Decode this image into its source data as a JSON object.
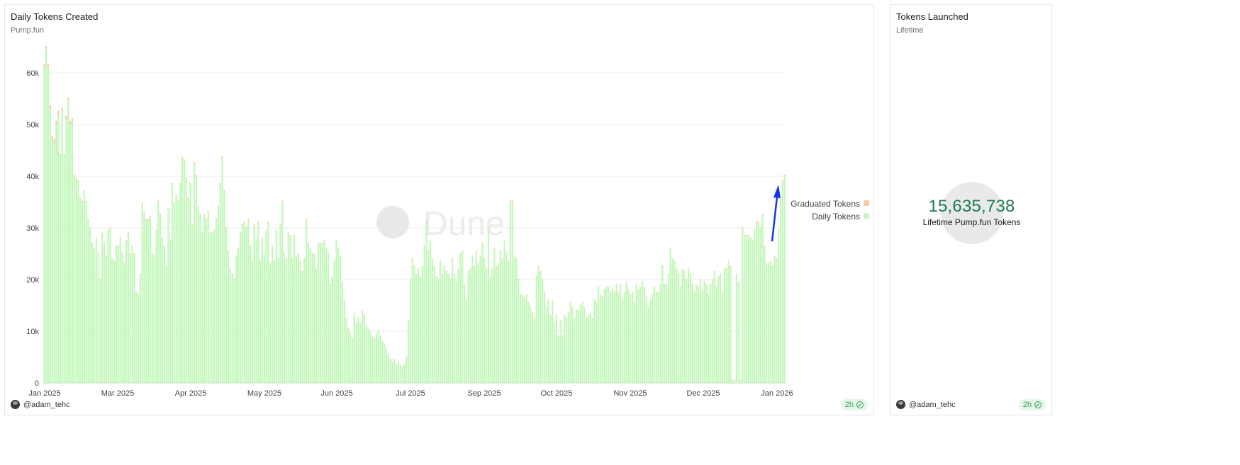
{
  "main_panel": {
    "title": "Daily Tokens Created",
    "subtitle": "Pump.fun",
    "author": "@adam_tehc",
    "refresh": "2h",
    "watermark": "Dune"
  },
  "side_panel": {
    "title": "Tokens Launched",
    "subtitle": "Lifetime",
    "value": "15,635,738",
    "value_label": "Lifetime Pump.fun Tokens",
    "author": "@adam_tehc",
    "refresh": "2h"
  },
  "colors": {
    "daily": "#c3f8bb",
    "graduated": "#f7c9a6",
    "value": "#1c7a52"
  },
  "chart_data": {
    "type": "bar",
    "stacked": true,
    "legend": "right",
    "grid": true,
    "ylim": [
      0,
      65000
    ],
    "yticks": [
      0,
      10000,
      20000,
      30000,
      40000,
      50000,
      60000
    ],
    "ytick_labels": [
      "0",
      "10k",
      "20k",
      "30k",
      "40k",
      "50k",
      "60k"
    ],
    "x_tick_labels": [
      "Jan 2025",
      "Mar 2025",
      "Apr 2025",
      "May 2025",
      "Jun 2025",
      "Jul 2025",
      "Sep 2025",
      "Oct 2025",
      "Nov 2025",
      "Dec 2025",
      "Jan 2026"
    ],
    "series_names": [
      "Graduated Tokens",
      "Daily Tokens"
    ],
    "anchors": [
      [
        0,
        61000
      ],
      [
        1,
        64500
      ],
      [
        2,
        61000
      ],
      [
        3,
        53000
      ],
      [
        4,
        47000
      ],
      [
        5,
        46500
      ],
      [
        6,
        50000
      ],
      [
        7,
        52000
      ],
      [
        8,
        44000
      ],
      [
        9,
        52500
      ],
      [
        10,
        44000
      ],
      [
        11,
        51000
      ],
      [
        12,
        54500
      ],
      [
        13,
        50000
      ],
      [
        14,
        50500
      ],
      [
        15,
        40000
      ],
      [
        16,
        39500
      ],
      [
        17,
        39000
      ],
      [
        18,
        35500
      ],
      [
        19,
        35000
      ],
      [
        20,
        37000
      ],
      [
        21,
        35000
      ],
      [
        22,
        31500
      ],
      [
        23,
        30000
      ],
      [
        24,
        27000
      ],
      [
        25,
        26000
      ],
      [
        26,
        28000
      ],
      [
        27,
        25000
      ],
      [
        28,
        20000
      ],
      [
        29,
        29000
      ],
      [
        30,
        27000
      ],
      [
        31,
        24500
      ],
      [
        32,
        29500
      ],
      [
        33,
        30000
      ],
      [
        34,
        24000
      ],
      [
        35,
        23500
      ],
      [
        36,
        26500
      ],
      [
        37,
        26500
      ],
      [
        38,
        28000
      ],
      [
        39,
        25000
      ],
      [
        40,
        23000
      ],
      [
        41,
        27500
      ],
      [
        42,
        29000
      ],
      [
        43,
        25000
      ],
      [
        44,
        26500
      ],
      [
        45,
        25000
      ],
      [
        46,
        17500
      ],
      [
        47,
        17000
      ],
      [
        48,
        21000
      ],
      [
        49,
        34500
      ],
      [
        50,
        33000
      ],
      [
        51,
        31500
      ],
      [
        52,
        31500
      ],
      [
        53,
        32000
      ],
      [
        54,
        25000
      ],
      [
        55,
        24500
      ],
      [
        56,
        29500
      ],
      [
        57,
        35000
      ],
      [
        58,
        32500
      ],
      [
        59,
        28000
      ],
      [
        60,
        26500
      ],
      [
        61,
        22500
      ],
      [
        62,
        33500
      ],
      [
        63,
        27500
      ],
      [
        64,
        38500
      ],
      [
        65,
        34500
      ],
      [
        66,
        36000
      ],
      [
        67,
        35000
      ],
      [
        68,
        38500
      ],
      [
        69,
        43500
      ],
      [
        70,
        43000
      ],
      [
        71,
        39500
      ],
      [
        72,
        35500
      ],
      [
        73,
        38500
      ],
      [
        74,
        30500
      ],
      [
        75,
        42500
      ],
      [
        76,
        40000
      ],
      [
        77,
        34000
      ],
      [
        78,
        32500
      ],
      [
        79,
        29000
      ],
      [
        80,
        32500
      ],
      [
        81,
        31500
      ],
      [
        82,
        33000
      ],
      [
        83,
        29000
      ],
      [
        84,
        29000
      ],
      [
        85,
        29500
      ],
      [
        86,
        31500
      ],
      [
        87,
        34000
      ],
      [
        88,
        38500
      ],
      [
        89,
        43500
      ],
      [
        90,
        37000
      ],
      [
        91,
        30000
      ],
      [
        92,
        25500
      ],
      [
        93,
        22000
      ],
      [
        94,
        21000
      ],
      [
        95,
        20000
      ],
      [
        96,
        24500
      ],
      [
        97,
        26000
      ],
      [
        98,
        29000
      ],
      [
        99,
        30500
      ],
      [
        100,
        31000
      ],
      [
        101,
        30000
      ],
      [
        102,
        31500
      ],
      [
        103,
        26500
      ],
      [
        104,
        23500
      ],
      [
        105,
        30500
      ],
      [
        106,
        27500
      ],
      [
        107,
        31000
      ],
      [
        108,
        23500
      ],
      [
        109,
        28000
      ],
      [
        110,
        25000
      ],
      [
        111,
        29500
      ],
      [
        112,
        31000
      ],
      [
        113,
        23000
      ],
      [
        114,
        26500
      ],
      [
        115,
        23500
      ],
      [
        116,
        29500
      ],
      [
        117,
        24000
      ],
      [
        118,
        30500
      ],
      [
        119,
        35000
      ],
      [
        120,
        25000
      ],
      [
        121,
        24000
      ],
      [
        122,
        29000
      ],
      [
        123,
        28500
      ],
      [
        124,
        24000
      ],
      [
        125,
        28500
      ],
      [
        126,
        24500
      ],
      [
        127,
        25000
      ],
      [
        128,
        23500
      ],
      [
        129,
        21500
      ],
      [
        130,
        24000
      ],
      [
        131,
        31500
      ],
      [
        132,
        27000
      ],
      [
        133,
        26000
      ],
      [
        134,
        25000
      ],
      [
        135,
        25000
      ],
      [
        136,
        22000
      ],
      [
        137,
        27000
      ],
      [
        138,
        27000
      ],
      [
        139,
        27000
      ],
      [
        140,
        27500
      ],
      [
        141,
        26000
      ],
      [
        142,
        25000
      ],
      [
        143,
        19000
      ],
      [
        144,
        20500
      ],
      [
        145,
        23500
      ],
      [
        146,
        27500
      ],
      [
        147,
        26000
      ],
      [
        148,
        24500
      ],
      [
        149,
        19500
      ],
      [
        150,
        16000
      ],
      [
        151,
        12500
      ],
      [
        152,
        10500
      ],
      [
        153,
        9500
      ],
      [
        154,
        8500
      ],
      [
        155,
        13500
      ],
      [
        156,
        11500
      ],
      [
        157,
        12500
      ],
      [
        158,
        11500
      ],
      [
        159,
        14000
      ],
      [
        160,
        13000
      ],
      [
        161,
        11000
      ],
      [
        162,
        10500
      ],
      [
        163,
        10000
      ],
      [
        164,
        9000
      ],
      [
        165,
        8500
      ],
      [
        166,
        9500
      ],
      [
        167,
        10000
      ],
      [
        168,
        9000
      ],
      [
        169,
        8000
      ],
      [
        170,
        7500
      ],
      [
        171,
        6500
      ],
      [
        172,
        5500
      ],
      [
        173,
        4500
      ],
      [
        174,
        4000
      ],
      [
        175,
        4500
      ],
      [
        176,
        3500
      ],
      [
        177,
        4000
      ],
      [
        178,
        3500
      ],
      [
        179,
        3000
      ],
      [
        180,
        3500
      ],
      [
        181,
        5000
      ],
      [
        182,
        12000
      ],
      [
        183,
        20000
      ],
      [
        184,
        24000
      ],
      [
        185,
        22500
      ],
      [
        186,
        21000
      ],
      [
        187,
        22000
      ],
      [
        188,
        20500
      ],
      [
        189,
        22500
      ],
      [
        190,
        26500
      ],
      [
        191,
        31000
      ],
      [
        192,
        25500
      ],
      [
        193,
        27500
      ],
      [
        194,
        24000
      ],
      [
        195,
        22500
      ],
      [
        196,
        20500
      ],
      [
        197,
        20000
      ],
      [
        198,
        23500
      ],
      [
        199,
        21000
      ],
      [
        200,
        22500
      ],
      [
        201,
        21500
      ],
      [
        202,
        21000
      ],
      [
        203,
        20000
      ],
      [
        204,
        24000
      ],
      [
        205,
        21000
      ],
      [
        206,
        19500
      ],
      [
        207,
        22000
      ],
      [
        208,
        25000
      ],
      [
        209,
        25500
      ],
      [
        210,
        19000
      ],
      [
        211,
        16000
      ],
      [
        212,
        21500
      ],
      [
        213,
        22000
      ],
      [
        214,
        24500
      ],
      [
        215,
        22500
      ],
      [
        216,
        25500
      ],
      [
        217,
        23000
      ],
      [
        218,
        24500
      ],
      [
        219,
        27000
      ],
      [
        220,
        24000
      ],
      [
        221,
        22000
      ],
      [
        222,
        30000
      ],
      [
        223,
        20500
      ],
      [
        224,
        22000
      ],
      [
        225,
        26000
      ],
      [
        226,
        22500
      ],
      [
        227,
        23000
      ],
      [
        228,
        25500
      ],
      [
        229,
        24000
      ],
      [
        230,
        27500
      ],
      [
        231,
        25000
      ],
      [
        232,
        23500
      ],
      [
        233,
        35000
      ],
      [
        234,
        35000
      ],
      [
        235,
        24500
      ],
      [
        236,
        24000
      ],
      [
        237,
        20000
      ],
      [
        238,
        17000
      ],
      [
        239,
        17000
      ],
      [
        240,
        16500
      ],
      [
        241,
        17000
      ],
      [
        242,
        15500
      ],
      [
        243,
        14500
      ],
      [
        244,
        13500
      ],
      [
        245,
        12500
      ],
      [
        246,
        20500
      ],
      [
        247,
        22500
      ],
      [
        248,
        21500
      ],
      [
        249,
        20000
      ],
      [
        250,
        17500
      ],
      [
        251,
        14500
      ],
      [
        252,
        16000
      ],
      [
        253,
        13000
      ],
      [
        254,
        16000
      ],
      [
        255,
        11500
      ],
      [
        256,
        13000
      ],
      [
        257,
        9000
      ],
      [
        258,
        12000
      ],
      [
        259,
        9000
      ],
      [
        260,
        13000
      ],
      [
        261,
        12500
      ],
      [
        262,
        13500
      ],
      [
        263,
        15500
      ],
      [
        264,
        14500
      ],
      [
        265,
        12500
      ],
      [
        266,
        14000
      ],
      [
        267,
        14000
      ],
      [
        268,
        15000
      ],
      [
        269,
        15500
      ],
      [
        270,
        14500
      ],
      [
        271,
        12500
      ],
      [
        272,
        13000
      ],
      [
        273,
        13500
      ],
      [
        274,
        12500
      ],
      [
        275,
        16000
      ],
      [
        276,
        15500
      ],
      [
        277,
        18500
      ],
      [
        278,
        17000
      ],
      [
        279,
        16500
      ],
      [
        280,
        18000
      ],
      [
        281,
        18500
      ],
      [
        282,
        18500
      ],
      [
        283,
        17500
      ],
      [
        284,
        18000
      ],
      [
        285,
        17500
      ],
      [
        286,
        19000
      ],
      [
        287,
        17500
      ],
      [
        288,
        19000
      ],
      [
        289,
        16000
      ],
      [
        290,
        17500
      ],
      [
        291,
        19500
      ],
      [
        292,
        18000
      ],
      [
        293,
        17000
      ],
      [
        294,
        17500
      ],
      [
        295,
        15500
      ],
      [
        296,
        19000
      ],
      [
        297,
        18000
      ],
      [
        298,
        18500
      ],
      [
        299,
        19500
      ],
      [
        300,
        18500
      ],
      [
        301,
        16500
      ],
      [
        302,
        14500
      ],
      [
        303,
        16000
      ],
      [
        304,
        17000
      ],
      [
        305,
        18500
      ],
      [
        306,
        17500
      ],
      [
        307,
        17500
      ],
      [
        308,
        19000
      ],
      [
        309,
        22500
      ],
      [
        310,
        19000
      ],
      [
        311,
        19000
      ],
      [
        312,
        21000
      ],
      [
        313,
        26000
      ],
      [
        314,
        24000
      ],
      [
        315,
        23500
      ],
      [
        316,
        22000
      ],
      [
        317,
        21000
      ],
      [
        318,
        18500
      ],
      [
        319,
        22000
      ],
      [
        320,
        21500
      ],
      [
        321,
        20000
      ],
      [
        322,
        22000
      ],
      [
        323,
        21000
      ],
      [
        324,
        19000
      ],
      [
        325,
        17500
      ],
      [
        326,
        19000
      ],
      [
        327,
        18500
      ],
      [
        328,
        20000
      ],
      [
        329,
        18000
      ],
      [
        330,
        19500
      ],
      [
        331,
        19000
      ],
      [
        332,
        17000
      ],
      [
        333,
        19000
      ],
      [
        334,
        20000
      ],
      [
        335,
        21500
      ],
      [
        336,
        18500
      ],
      [
        337,
        20500
      ],
      [
        338,
        21000
      ],
      [
        339,
        17500
      ],
      [
        340,
        22000
      ],
      [
        341,
        22000
      ],
      [
        342,
        23500
      ],
      [
        343,
        22500
      ],
      [
        344,
        500
      ],
      [
        345,
        500
      ],
      [
        346,
        21000
      ],
      [
        347,
        19500
      ],
      [
        348,
        500
      ],
      [
        349,
        30000
      ],
      [
        350,
        28500
      ],
      [
        351,
        28500
      ],
      [
        352,
        28500
      ],
      [
        353,
        28000
      ],
      [
        354,
        27500
      ],
      [
        355,
        29500
      ],
      [
        356,
        31000
      ],
      [
        357,
        31000
      ],
      [
        358,
        30000
      ],
      [
        359,
        32500
      ],
      [
        360,
        26500
      ],
      [
        361,
        23000
      ],
      [
        362,
        23000
      ],
      [
        363,
        23500
      ],
      [
        364,
        22500
      ],
      [
        365,
        24500
      ],
      [
        366,
        24000
      ],
      [
        367,
        29500
      ],
      [
        368,
        35500
      ],
      [
        369,
        39000
      ],
      [
        370,
        40000
      ]
    ]
  }
}
